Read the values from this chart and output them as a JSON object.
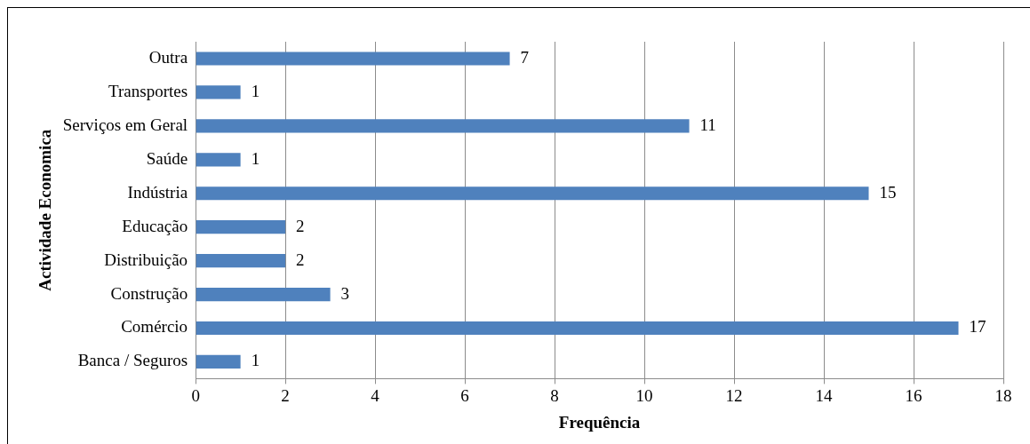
{
  "chart_data": {
    "type": "bar",
    "orientation": "horizontal",
    "xlabel": "Frequência",
    "ylabel": "Actividade Economica",
    "categories": [
      "Outra",
      "Transportes",
      "Serviços em Geral",
      "Saúde",
      "Indústria",
      "Educação",
      "Distribuição",
      "Construção",
      "Comércio",
      "Banca / Seguros"
    ],
    "values": [
      7,
      1,
      11,
      1,
      15,
      2,
      2,
      3,
      17,
      1
    ],
    "color": "#4f81bd",
    "xlim": [
      0,
      18
    ],
    "xticks": [
      0,
      2,
      4,
      6,
      8,
      10,
      12,
      14,
      16,
      18
    ],
    "grid": "x",
    "data_labels": true,
    "legend": false
  }
}
